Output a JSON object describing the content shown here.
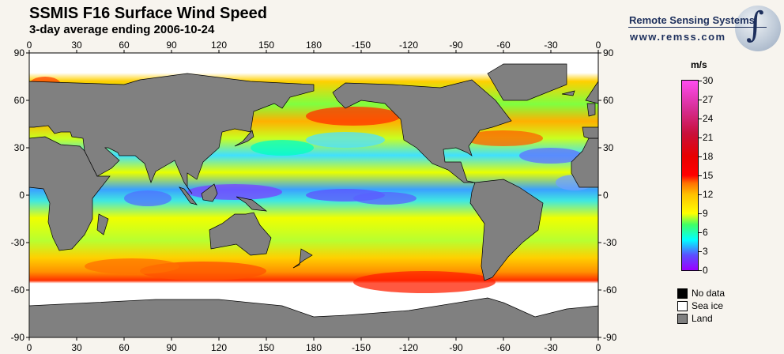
{
  "header": {
    "title": "SSMIS F16 Surface Wind Speed",
    "subtitle": "3-day average ending 2006-10-24"
  },
  "logo": {
    "name": "Remote Sensing Systems",
    "url": "www.remss.com"
  },
  "map": {
    "lon_labels": [
      "0",
      "30",
      "60",
      "90",
      "120",
      "150",
      "180",
      "-150",
      "-120",
      "-90",
      "-60",
      "-30",
      "0"
    ],
    "lat_labels": [
      "90",
      "60",
      "30",
      "0",
      "-30",
      "-60",
      "-90"
    ],
    "colors": {
      "land": "#808080",
      "sea_ice": "#ffffff",
      "no_data": "#000000"
    }
  },
  "colorbar": {
    "unit": "m/s",
    "ticks": [
      "30",
      "27",
      "24",
      "21",
      "18",
      "15",
      "12",
      "9",
      "6",
      "3",
      "0"
    ]
  },
  "legend": [
    {
      "label": "No data",
      "color": "#000000"
    },
    {
      "label": "Sea ice",
      "color": "#ffffff"
    },
    {
      "label": "Land",
      "color": "#808080"
    }
  ]
}
